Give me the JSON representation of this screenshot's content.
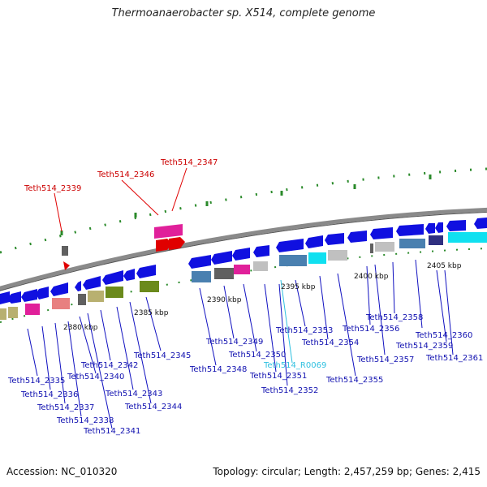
{
  "title": "Thermoanaerobacter sp. X514, complete genome",
  "footer": {
    "accession": "Accession: NC_010320",
    "summary": "Topology: circular; Length: 2,457,259 bp; Genes: 2,415"
  },
  "colors": {
    "cds_forward": "#1010e0",
    "cds_reverse": "#1010e0",
    "highlight": "#e00000",
    "pink": "#e0209a",
    "cyan": "#10e0f0",
    "steel": "#4a80b0",
    "olive": "#6b8a1c",
    "khaki": "#b8b070",
    "grey": "#707070",
    "lightgrey": "#c0c0c0",
    "salmon": "#e88080",
    "navy": "#303080",
    "backbone": "#888888",
    "tick": "#2a8a2a"
  },
  "ruler_labels": [
    "2380 kbp",
    "2385 kbp",
    "2390 kbp",
    "2395 kbp",
    "2400 kbp",
    "2405 kbp"
  ],
  "highlight_labels": [
    "Teth514_2339",
    "Teth514_2346",
    "Teth514_2347"
  ],
  "gene_labels": [
    "Teth514_2335",
    "Teth514_2336",
    "Teth514_2337",
    "Teth514_2338",
    "Teth514_2340",
    "Teth514_2341",
    "Teth514_2342",
    "Teth514_2343",
    "Teth514_2344",
    "Teth514_2345",
    "Teth514_2348",
    "Teth514_2349",
    "Teth514_2350",
    "Teth514_2351",
    "Teth514_2352",
    "Teth514_2353",
    "Teth514_2354",
    "Teth514_2355",
    "Teth514_2356",
    "Teth514_2357",
    "Teth514_2358",
    "Teth514_2359",
    "Teth514_2360",
    "Teth514_2361"
  ],
  "rna_labels": [
    "Teth514_R0069"
  ]
}
